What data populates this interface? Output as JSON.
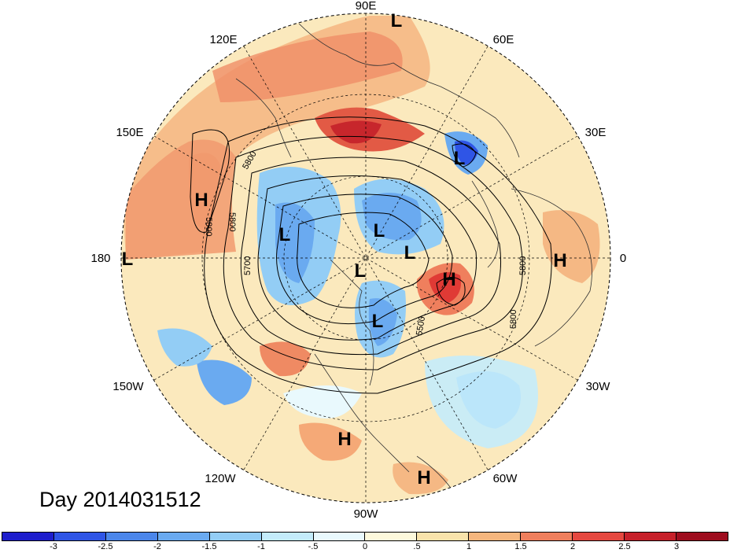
{
  "title_label": "Day 2014031512",
  "longitude_labels": {
    "lon_90E": "90E",
    "lon_60E": "60E",
    "lon_30E": "30E",
    "lon_0": "0",
    "lon_30W": "30W",
    "lon_60W": "60W",
    "lon_90W": "90W",
    "lon_120W": "120W",
    "lon_150W": "150W",
    "lon_180": "180",
    "lon_150E": "150E",
    "lon_120E": "120E"
  },
  "contour_labels": [
    "5800",
    "5800",
    "5800",
    "5700",
    "5500",
    "5800",
    "5800"
  ],
  "pressure_centers": [
    {
      "type": "L",
      "label": "L"
    },
    {
      "type": "L",
      "label": "L"
    },
    {
      "type": "H",
      "label": "H"
    },
    {
      "type": "L",
      "label": "L"
    },
    {
      "type": "L",
      "label": "L"
    },
    {
      "type": "L",
      "label": "L"
    },
    {
      "type": "L",
      "label": "L"
    },
    {
      "type": "H",
      "label": "H"
    },
    {
      "type": "H",
      "label": "H"
    },
    {
      "type": "L",
      "label": "L"
    },
    {
      "type": "L",
      "label": "L"
    },
    {
      "type": "H",
      "label": "H"
    },
    {
      "type": "H",
      "label": "H"
    }
  ],
  "colorbar": {
    "tick_labels": [
      "-3",
      "-2.5",
      "-2",
      "-1.5",
      "-1",
      "-.5",
      "0",
      ".5",
      "1",
      "1.5",
      "2",
      "2.5",
      "3"
    ],
    "colors": [
      "#1e1ecc",
      "#2f55e6",
      "#4b86ea",
      "#6aaaf0",
      "#93cdf5",
      "#c4ecfb",
      "#e9f9fd",
      "#fdf9dc",
      "#f9e3ab",
      "#f5b67e",
      "#ef7f5d",
      "#e54840",
      "#c6202a",
      "#9e0d1e"
    ]
  }
}
